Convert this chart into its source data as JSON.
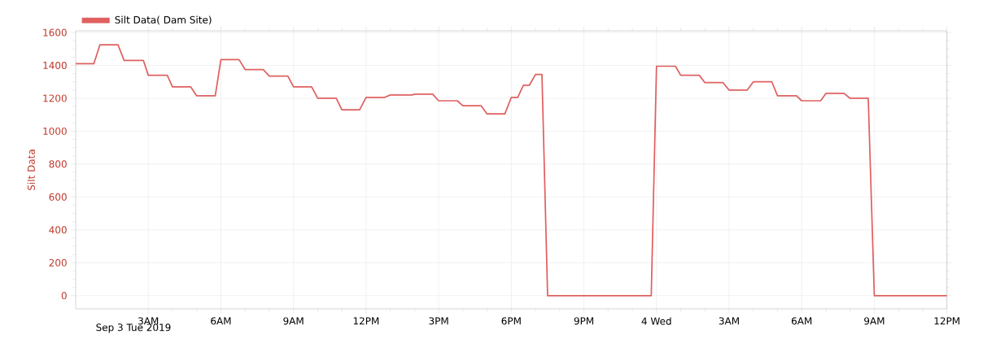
{
  "chart_data": {
    "type": "line",
    "ylabel": "Silt Data",
    "annotations": [
      "Sep 3 Tue 2019"
    ],
    "x": [
      "2019-09-03T00:00",
      "2019-09-03T00:45",
      "2019-09-03T01:00",
      "2019-09-03T01:45",
      "2019-09-03T02:00",
      "2019-09-03T02:48",
      "2019-09-03T03:00",
      "2019-09-03T03:47",
      "2019-09-03T04:00",
      "2019-09-03T04:45",
      "2019-09-03T05:00",
      "2019-09-03T05:46",
      "2019-09-03T06:00",
      "2019-09-03T06:45",
      "2019-09-03T07:00",
      "2019-09-03T07:45",
      "2019-09-03T08:00",
      "2019-09-03T08:46",
      "2019-09-03T09:00",
      "2019-09-03T09:45",
      "2019-09-03T10:00",
      "2019-09-03T10:46",
      "2019-09-03T11:00",
      "2019-09-03T11:44",
      "2019-09-03T12:00",
      "2019-09-03T12:45",
      "2019-09-03T13:00",
      "2019-09-03T13:54",
      "2019-09-03T14:00",
      "2019-09-03T14:45",
      "2019-09-03T15:00",
      "2019-09-03T15:46",
      "2019-09-03T16:00",
      "2019-09-03T16:45",
      "2019-09-03T17:00",
      "2019-09-03T17:44",
      "2019-09-03T18:00",
      "2019-09-03T18:16",
      "2019-09-03T18:30",
      "2019-09-03T18:45",
      "2019-09-03T19:00",
      "2019-09-03T19:16",
      "2019-09-03T19:30",
      "2019-09-03T23:47",
      "2019-09-04T00:00",
      "2019-09-04T00:47",
      "2019-09-04T01:00",
      "2019-09-04T01:46",
      "2019-09-04T02:00",
      "2019-09-04T02:45",
      "2019-09-04T03:00",
      "2019-09-04T03:45",
      "2019-09-04T04:00",
      "2019-09-04T04:46",
      "2019-09-04T05:00",
      "2019-09-04T05:47",
      "2019-09-04T06:00",
      "2019-09-04T06:47",
      "2019-09-04T07:00",
      "2019-09-04T07:45",
      "2019-09-04T08:00",
      "2019-09-04T08:45",
      "2019-09-04T09:00",
      "2019-09-04T12:00"
    ],
    "series": [
      {
        "name": "Silt Data( Dam Site)",
        "color": "#e06060",
        "values": [
          1410,
          1410,
          1525,
          1525,
          1430,
          1430,
          1340,
          1340,
          1270,
          1270,
          1215,
          1215,
          1435,
          1435,
          1375,
          1375,
          1335,
          1335,
          1270,
          1270,
          1200,
          1200,
          1130,
          1130,
          1205,
          1205,
          1220,
          1220,
          1225,
          1225,
          1185,
          1185,
          1155,
          1155,
          1105,
          1105,
          1205,
          1205,
          1280,
          1280,
          1345,
          1345,
          0,
          0,
          1395,
          1395,
          1340,
          1340,
          1295,
          1295,
          1250,
          1250,
          1300,
          1300,
          1215,
          1215,
          1185,
          1185,
          1230,
          1230,
          1200,
          1200,
          0,
          0
        ]
      }
    ],
    "xlim": [
      "2019-09-03T00:00",
      "2019-09-04T12:00"
    ],
    "ylim": [
      -80,
      1610
    ],
    "xticks": [
      {
        "value": "2019-09-03T03:00",
        "label": "3AM"
      },
      {
        "value": "2019-09-03T06:00",
        "label": "6AM"
      },
      {
        "value": "2019-09-03T09:00",
        "label": "9AM"
      },
      {
        "value": "2019-09-03T12:00",
        "label": "12PM"
      },
      {
        "value": "2019-09-03T15:00",
        "label": "3PM"
      },
      {
        "value": "2019-09-03T18:00",
        "label": "6PM"
      },
      {
        "value": "2019-09-03T21:00",
        "label": "9PM"
      },
      {
        "value": "2019-09-04T00:00",
        "label": "4 Wed"
      },
      {
        "value": "2019-09-04T03:00",
        "label": "3AM"
      },
      {
        "value": "2019-09-04T06:00",
        "label": "6AM"
      },
      {
        "value": "2019-09-04T09:00",
        "label": "9AM"
      },
      {
        "value": "2019-09-04T12:00",
        "label": "12PM"
      }
    ],
    "yticks": [
      0,
      200,
      400,
      600,
      800,
      1000,
      1200,
      1400,
      1600
    ],
    "grid": true,
    "legend": "top left",
    "marker": "none",
    "line_style": "solid"
  }
}
